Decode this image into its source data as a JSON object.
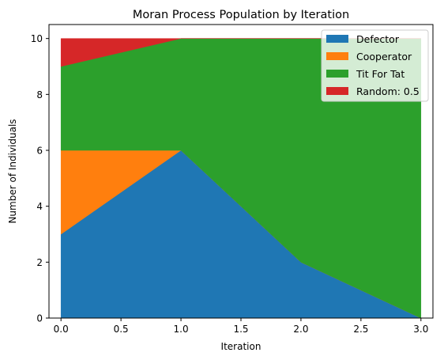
{
  "chart_data": {
    "type": "area",
    "stacked": true,
    "title": "Moran Process Population by Iteration",
    "xlabel": "Iteration",
    "ylabel": "Number of Individuals",
    "x": [
      0,
      1,
      2,
      3
    ],
    "xlim": [
      -0.1,
      3.1
    ],
    "ylim": [
      0,
      10.5
    ],
    "xticks": [
      0.0,
      0.5,
      1.0,
      1.5,
      2.0,
      2.5,
      3.0
    ],
    "xtick_labels": [
      "0.0",
      "0.5",
      "1.0",
      "1.5",
      "2.0",
      "2.5",
      "3.0"
    ],
    "yticks": [
      0,
      2,
      4,
      6,
      8,
      10
    ],
    "ytick_labels": [
      "0",
      "2",
      "4",
      "6",
      "8",
      "10"
    ],
    "legend_position": "top-right",
    "series": [
      {
        "name": "Defector",
        "color": "#1f77b4",
        "values": [
          3,
          6,
          2,
          0
        ]
      },
      {
        "name": "Cooperator",
        "color": "#ff7f0e",
        "values": [
          3,
          0,
          0,
          0
        ]
      },
      {
        "name": "Tit For Tat",
        "color": "#2ca02c",
        "values": [
          3,
          4,
          8,
          10
        ]
      },
      {
        "name": "Random: 0.5",
        "color": "#d62728",
        "values": [
          1,
          0,
          0,
          0
        ]
      }
    ]
  }
}
